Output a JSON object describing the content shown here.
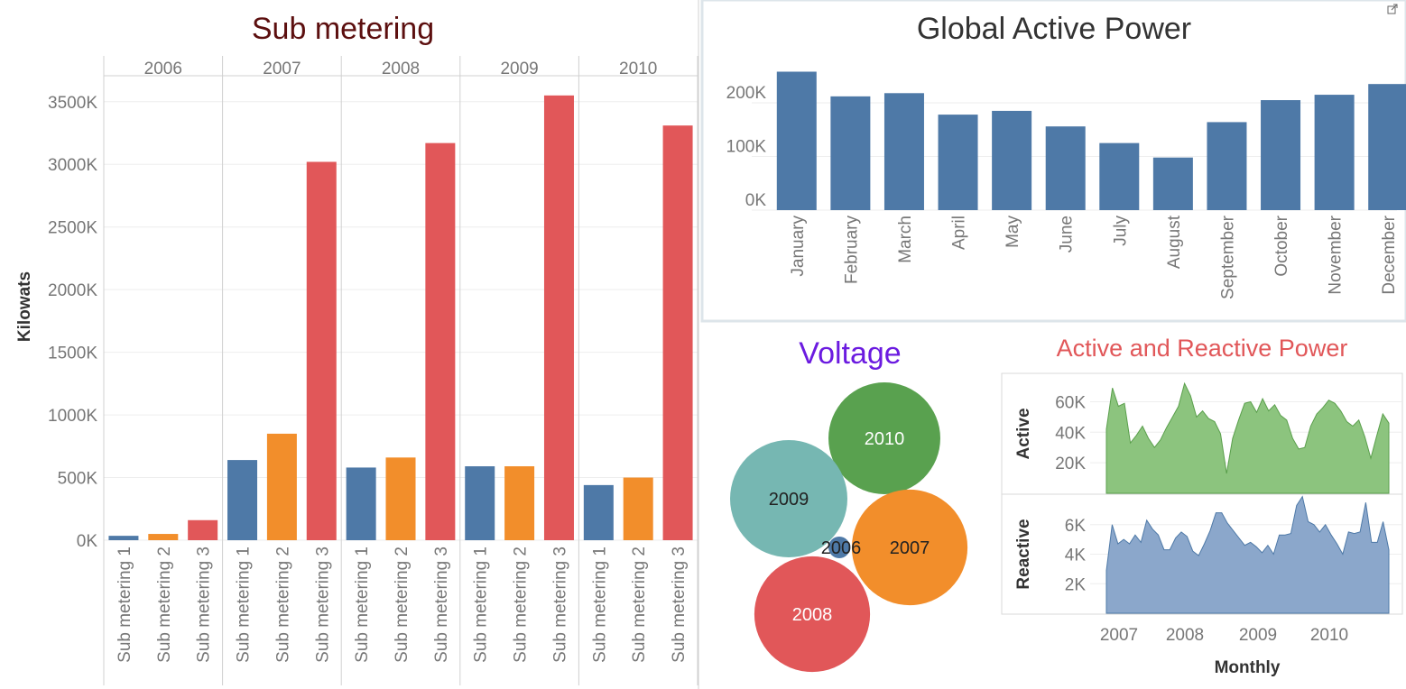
{
  "colors": {
    "blue": "#4e79a7",
    "orange": "#f28e2b",
    "red": "#e15759",
    "green": "#59a14f",
    "teal": "#76b7b2",
    "area_green": "#8cc47e",
    "area_blue": "#8ba7cb",
    "sub_title": "#5c0f0f",
    "voltage_title": "#6b1be0",
    "ar_title": "#e15759",
    "gap_title": "#333333"
  },
  "charts": [
    {
      "id": "sub_metering",
      "type": "bar",
      "title": "Sub metering",
      "ylabel": "Kilowats",
      "ylim": [
        0,
        3700000
      ],
      "yticks": [
        0,
        500000,
        1000000,
        1500000,
        2000000,
        2500000,
        3000000,
        3500000
      ],
      "ytick_labels": [
        "0K",
        "500K",
        "1000K",
        "1500K",
        "2000K",
        "2500K",
        "3000K",
        "3500K"
      ],
      "groups": [
        "2006",
        "2007",
        "2008",
        "2009",
        "2010"
      ],
      "categories": [
        "Sub metering 1",
        "Sub metering 2",
        "Sub metering 3"
      ],
      "series": [
        {
          "values": [
            35000,
            50000,
            160000
          ],
          "group": "2006"
        },
        {
          "values": [
            640000,
            850000,
            3020000
          ],
          "group": "2007"
        },
        {
          "values": [
            580000,
            660000,
            3170000
          ],
          "group": "2008"
        },
        {
          "values": [
            590000,
            590000,
            3550000
          ],
          "group": "2009"
        },
        {
          "values": [
            440000,
            500000,
            3310000
          ],
          "group": "2010"
        }
      ]
    },
    {
      "id": "global_active_power",
      "type": "bar",
      "title": "Global Active Power",
      "categories": [
        "January",
        "February",
        "March",
        "April",
        "May",
        "June",
        "July",
        "August",
        "September",
        "October",
        "November",
        "December"
      ],
      "values": [
        258000,
        212000,
        218000,
        178000,
        185000,
        156000,
        125000,
        98000,
        164000,
        205000,
        215000,
        235000
      ],
      "ylim": [
        -40000,
        270000
      ],
      "yticks": [
        0,
        100000,
        200000
      ],
      "ytick_labels": [
        "0K",
        "100K",
        "200K"
      ]
    },
    {
      "id": "voltage",
      "type": "scatter",
      "title": "Voltage",
      "points": [
        {
          "label": "2010",
          "value": 1.0
        },
        {
          "label": "2009",
          "value": 1.1
        },
        {
          "label": "2007",
          "value": 1.07
        },
        {
          "label": "2008",
          "value": 1.07
        },
        {
          "label": "2006",
          "value": 0.01
        }
      ]
    },
    {
      "id": "active_reactive_power",
      "type": "area",
      "title": "Active and Reactive Power",
      "xlabel": "Monthly",
      "x_ticks": [
        "2007",
        "2008",
        "2009",
        "2010"
      ],
      "panels": [
        {
          "name": "Active",
          "ylim": [
            0,
            78000
          ],
          "yticks": [
            20000,
            40000,
            60000
          ],
          "ytick_labels": [
            "20K",
            "40K",
            "60K"
          ],
          "values": [
            42000,
            69000,
            57000,
            59000,
            33000,
            38000,
            44000,
            36000,
            30000,
            35000,
            43000,
            50000,
            57000,
            72000,
            64000,
            50000,
            54000,
            49000,
            47000,
            39000,
            13000,
            36000,
            48000,
            59000,
            60000,
            53000,
            62000,
            54000,
            58000,
            51000,
            48000,
            36000,
            29000,
            30000,
            44000,
            52000,
            56000,
            61000,
            59000,
            54000,
            47000,
            44000,
            48000,
            37000,
            23000,
            38000,
            52000,
            46000
          ]
        },
        {
          "name": "Reactive",
          "ylim": [
            0,
            8000
          ],
          "yticks": [
            2000,
            4000,
            6000
          ],
          "ytick_labels": [
            "2K",
            "4K",
            "6K"
          ],
          "values": [
            2900,
            6000,
            4700,
            5000,
            4700,
            5300,
            4800,
            6300,
            5700,
            5300,
            4300,
            4300,
            5100,
            5500,
            5200,
            4200,
            3900,
            4700,
            5600,
            6800,
            6800,
            6100,
            5600,
            5100,
            4600,
            4800,
            4500,
            4100,
            4600,
            4000,
            5300,
            5300,
            5400,
            7300,
            7900,
            6200,
            6000,
            5500,
            6000,
            5300,
            4700,
            4000,
            5500,
            5400,
            5500,
            7500,
            4800,
            4800,
            6200,
            4300
          ]
        }
      ]
    }
  ]
}
